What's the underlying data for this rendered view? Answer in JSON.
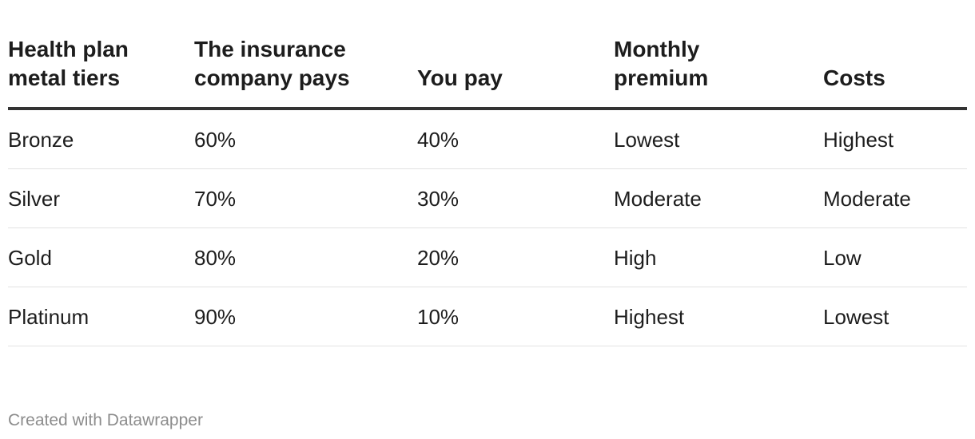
{
  "table": {
    "headers": [
      "Health plan metal tiers",
      "The insurance company pays",
      "You pay",
      "Monthly premium",
      "Costs"
    ],
    "header_lines": [
      [
        "Health plan",
        "metal tiers"
      ],
      [
        "The insurance",
        "company pays"
      ],
      [
        "",
        "You pay"
      ],
      [
        "Monthly",
        "premium"
      ],
      [
        "",
        "Costs"
      ]
    ],
    "rows": [
      [
        "Bronze",
        "60%",
        "40%",
        "Lowest",
        "Highest"
      ],
      [
        "Silver",
        "70%",
        "30%",
        "Moderate",
        "Moderate"
      ],
      [
        "Gold",
        "80%",
        "20%",
        "High",
        "Low"
      ],
      [
        "Platinum",
        "90%",
        "10%",
        "Highest",
        "Lowest"
      ]
    ]
  },
  "footer": {
    "credit": "Created with Datawrapper"
  },
  "colors": {
    "text": "#1d1d1d",
    "header_rule": "#333333",
    "row_rule": "#e2e2e2",
    "footer_text": "#8c8c8c"
  }
}
